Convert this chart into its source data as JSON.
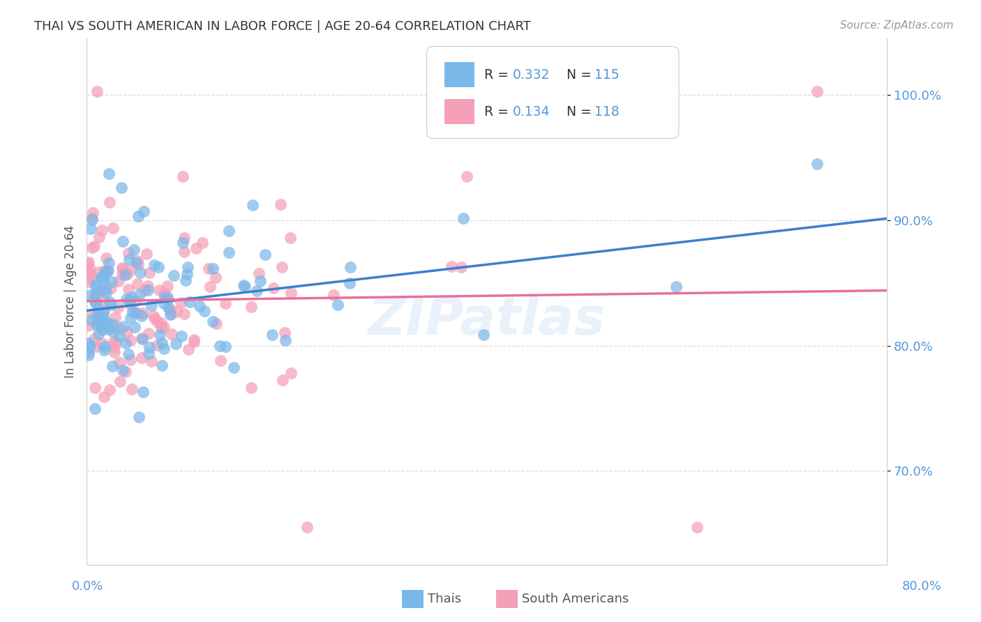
{
  "title": "THAI VS SOUTH AMERICAN IN LABOR FORCE | AGE 20-64 CORRELATION CHART",
  "source": "Source: ZipAtlas.com",
  "ylabel": "In Labor Force | Age 20-64",
  "xmin": 0.0,
  "xmax": 0.8,
  "ymin": 0.625,
  "ymax": 1.045,
  "ytick_values": [
    0.7,
    0.8,
    0.9,
    1.0
  ],
  "ytick_labels": [
    "70.0%",
    "80.0%",
    "90.0%",
    "100.0%"
  ],
  "thai_color": "#7BB8EA",
  "sa_color": "#F4A0B8",
  "regression_blue": "#3E7FCC",
  "regression_pink": "#E8709A",
  "R_thai": 0.332,
  "N_thai": 115,
  "R_sa": 0.134,
  "N_sa": 118,
  "background_color": "#FFFFFF",
  "grid_color": "#DDDDDD",
  "title_color": "#333333",
  "axis_label_color": "#5599DD",
  "legend_text_color": "#5599DD",
  "watermark_color": "#A8C8F0",
  "watermark_alpha": 0.25
}
